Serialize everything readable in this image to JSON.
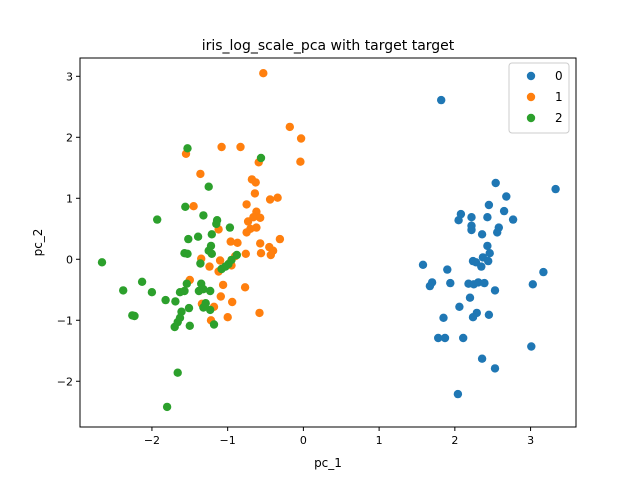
{
  "chart_data": {
    "type": "scatter",
    "title": "iris_log_scale_pca with target target",
    "xlabel": "pc_1",
    "ylabel": "pc_2",
    "xlim": [
      -2.95,
      3.6
    ],
    "ylim": [
      -2.75,
      3.3
    ],
    "xticks": [
      -2,
      -1,
      0,
      1,
      2,
      3
    ],
    "yticks": [
      -2,
      -1,
      0,
      1,
      2,
      3
    ],
    "xtick_labels": [
      "−2",
      "−1",
      "0",
      "1",
      "2",
      "3"
    ],
    "ytick_labels": [
      "−2",
      "−1",
      "0",
      "1",
      "2",
      "3"
    ],
    "grid": false,
    "legend": {
      "position": "top-right"
    },
    "series": [
      {
        "name": "0",
        "color": "#1f77b4",
        "points": [
          [
            1.82,
            2.61
          ],
          [
            3.33,
            1.15
          ],
          [
            2.54,
            1.25
          ],
          [
            2.68,
            1.03
          ],
          [
            2.45,
            0.89
          ],
          [
            2.08,
            0.74
          ],
          [
            2.22,
            0.69
          ],
          [
            2.43,
            0.69
          ],
          [
            2.65,
            0.79
          ],
          [
            2.77,
            0.65
          ],
          [
            2.05,
            0.64
          ],
          [
            2.22,
            0.55
          ],
          [
            2.22,
            0.48
          ],
          [
            2.58,
            0.52
          ],
          [
            2.56,
            0.44
          ],
          [
            2.36,
            0.41
          ],
          [
            2.43,
            0.22
          ],
          [
            2.46,
            0.1
          ],
          [
            2.37,
            0.03
          ],
          [
            2.24,
            -0.03
          ],
          [
            2.28,
            -0.05
          ],
          [
            2.44,
            -0.03
          ],
          [
            2.35,
            -0.12
          ],
          [
            1.58,
            -0.09
          ],
          [
            1.9,
            -0.17
          ],
          [
            3.17,
            -0.21
          ],
          [
            1.7,
            -0.38
          ],
          [
            1.67,
            -0.44
          ],
          [
            1.94,
            -0.39
          ],
          [
            2.18,
            -0.4
          ],
          [
            2.25,
            -0.41
          ],
          [
            2.31,
            -0.38
          ],
          [
            2.39,
            -0.39
          ],
          [
            2.53,
            -0.51
          ],
          [
            3.03,
            -0.41
          ],
          [
            2.2,
            -0.63
          ],
          [
            2.06,
            -0.78
          ],
          [
            2.29,
            -0.88
          ],
          [
            2.45,
            -0.91
          ],
          [
            2.24,
            -0.95
          ],
          [
            1.85,
            -0.96
          ],
          [
            1.78,
            -1.29
          ],
          [
            1.87,
            -1.29
          ],
          [
            2.11,
            -1.29
          ],
          [
            3.01,
            -1.43
          ],
          [
            2.36,
            -1.63
          ],
          [
            2.53,
            -1.79
          ],
          [
            2.04,
            -2.21
          ]
        ]
      },
      {
        "name": "1",
        "color": "#ff7f0e",
        "points": [
          [
            -0.53,
            3.05
          ],
          [
            -0.18,
            2.17
          ],
          [
            -0.03,
            1.98
          ],
          [
            -0.83,
            1.84
          ],
          [
            -1.08,
            1.84
          ],
          [
            -1.55,
            1.73
          ],
          [
            -0.59,
            1.59
          ],
          [
            -0.04,
            1.6
          ],
          [
            -1.36,
            1.4
          ],
          [
            -0.68,
            1.31
          ],
          [
            -0.63,
            1.26
          ],
          [
            -0.64,
            1.08
          ],
          [
            -0.34,
            1.01
          ],
          [
            -0.44,
            0.98
          ],
          [
            -0.75,
            0.9
          ],
          [
            -1.45,
            0.87
          ],
          [
            -0.62,
            0.78
          ],
          [
            -0.66,
            0.69
          ],
          [
            -0.57,
            0.68
          ],
          [
            -0.73,
            0.62
          ],
          [
            -0.62,
            0.52
          ],
          [
            -1.12,
            0.49
          ],
          [
            -0.7,
            0.5
          ],
          [
            -0.75,
            0.44
          ],
          [
            -0.31,
            0.33
          ],
          [
            -0.96,
            0.29
          ],
          [
            -0.87,
            0.27
          ],
          [
            -0.57,
            0.26
          ],
          [
            -0.45,
            0.2
          ],
          [
            -0.4,
            0.14
          ],
          [
            -0.43,
            0.07
          ],
          [
            -0.56,
            0.1
          ],
          [
            -0.76,
            0.09
          ],
          [
            -0.9,
            0.05
          ],
          [
            -1.35,
            0.01
          ],
          [
            -1.1,
            -0.02
          ],
          [
            -0.98,
            -0.07
          ],
          [
            -0.95,
            -0.1
          ],
          [
            -1.12,
            -0.2
          ],
          [
            -1.24,
            -0.12
          ],
          [
            -1.5,
            -0.34
          ],
          [
            -1.06,
            -0.42
          ],
          [
            -0.77,
            -0.46
          ],
          [
            -1.09,
            -0.61
          ],
          [
            -0.94,
            -0.7
          ],
          [
            -1.34,
            -0.73
          ],
          [
            -1.18,
            -0.78
          ],
          [
            -1.22,
            -1.0
          ],
          [
            -0.58,
            -0.88
          ],
          [
            -1.0,
            -0.95
          ]
        ]
      },
      {
        "name": "2",
        "color": "#2ca02c",
        "points": [
          [
            -1.53,
            1.82
          ],
          [
            -0.56,
            1.66
          ],
          [
            -1.25,
            1.19
          ],
          [
            -1.56,
            0.86
          ],
          [
            -1.93,
            0.65
          ],
          [
            -1.32,
            0.72
          ],
          [
            -1.14,
            0.64
          ],
          [
            -1.15,
            0.58
          ],
          [
            -0.97,
            0.52
          ],
          [
            -1.21,
            0.41
          ],
          [
            -1.39,
            0.37
          ],
          [
            -1.52,
            0.33
          ],
          [
            -1.22,
            0.22
          ],
          [
            -1.25,
            0.14
          ],
          [
            -1.57,
            0.1
          ],
          [
            -1.53,
            0.09
          ],
          [
            -1.21,
            0.09
          ],
          [
            -0.88,
            0.07
          ],
          [
            -0.95,
            -0.01
          ],
          [
            -0.99,
            -0.08
          ],
          [
            -1.03,
            -0.12
          ],
          [
            -1.36,
            -0.07
          ],
          [
            -1.08,
            -0.16
          ],
          [
            -2.66,
            -0.05
          ],
          [
            -2.13,
            -0.37
          ],
          [
            -1.54,
            -0.4
          ],
          [
            -1.35,
            -0.4
          ],
          [
            -1.32,
            -0.49
          ],
          [
            -1.38,
            -0.52
          ],
          [
            -2.38,
            -0.51
          ],
          [
            -2.0,
            -0.54
          ],
          [
            -1.57,
            -0.52
          ],
          [
            -1.63,
            -0.54
          ],
          [
            -1.23,
            -0.52
          ],
          [
            -1.69,
            -0.69
          ],
          [
            -1.82,
            -0.67
          ],
          [
            -1.29,
            -0.72
          ],
          [
            -1.32,
            -0.79
          ],
          [
            -1.23,
            -0.83
          ],
          [
            -1.51,
            -0.8
          ],
          [
            -1.61,
            -0.86
          ],
          [
            -1.63,
            -0.96
          ],
          [
            -1.66,
            -1.03
          ],
          [
            -2.23,
            -0.93
          ],
          [
            -2.26,
            -0.92
          ],
          [
            -1.7,
            -1.11
          ],
          [
            -1.5,
            -1.09
          ],
          [
            -1.18,
            -1.07
          ],
          [
            -1.66,
            -1.86
          ],
          [
            -1.8,
            -2.42
          ]
        ]
      }
    ]
  }
}
